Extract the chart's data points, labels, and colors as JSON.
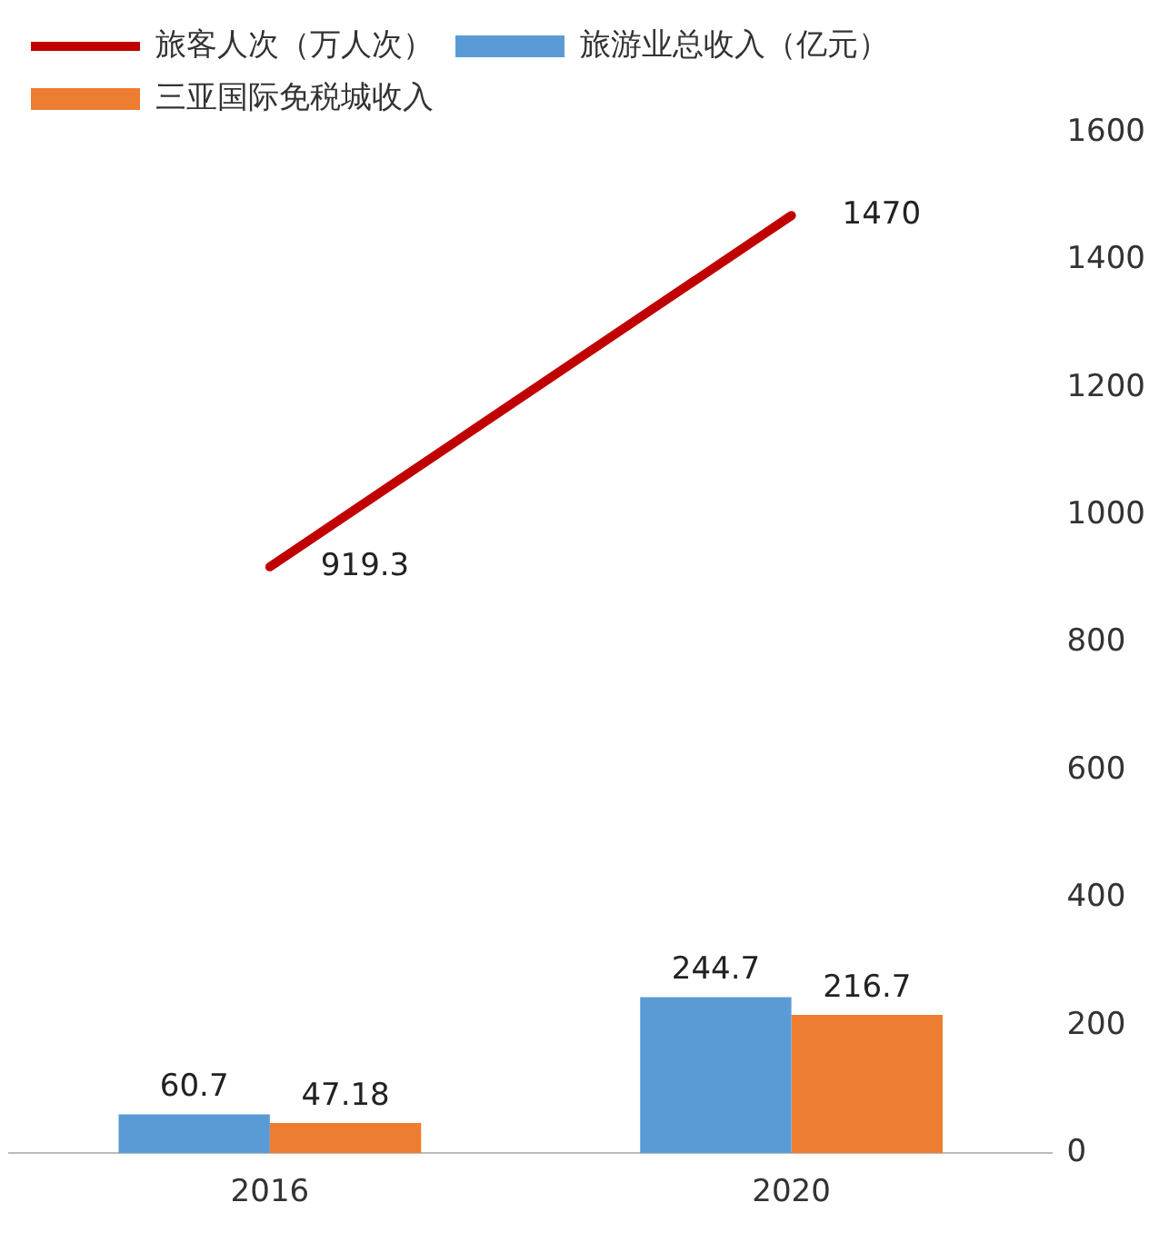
{
  "chart_data": {
    "type": "bar",
    "categories": [
      "2016",
      "2020"
    ],
    "series": [
      {
        "name": "旅游业总收入（亿元）",
        "color": "#5b9bd5",
        "values": [
          60.7,
          244.7
        ]
      },
      {
        "name": "三亚国际免税城收入",
        "color": "#ed7d31",
        "values": [
          47.18,
          216.7
        ]
      },
      {
        "name": "旅客人次（万人次）",
        "type": "line",
        "color": "#c00000",
        "values": [
          919.3,
          1470
        ]
      }
    ],
    "ylim": [
      0,
      1600
    ],
    "yticks": [
      0,
      200,
      400,
      600,
      800,
      1000,
      1200,
      1400,
      1600
    ],
    "data_labels": true,
    "legend": "top left",
    "grid": false,
    "marker": "none",
    "line_style": "solid"
  }
}
